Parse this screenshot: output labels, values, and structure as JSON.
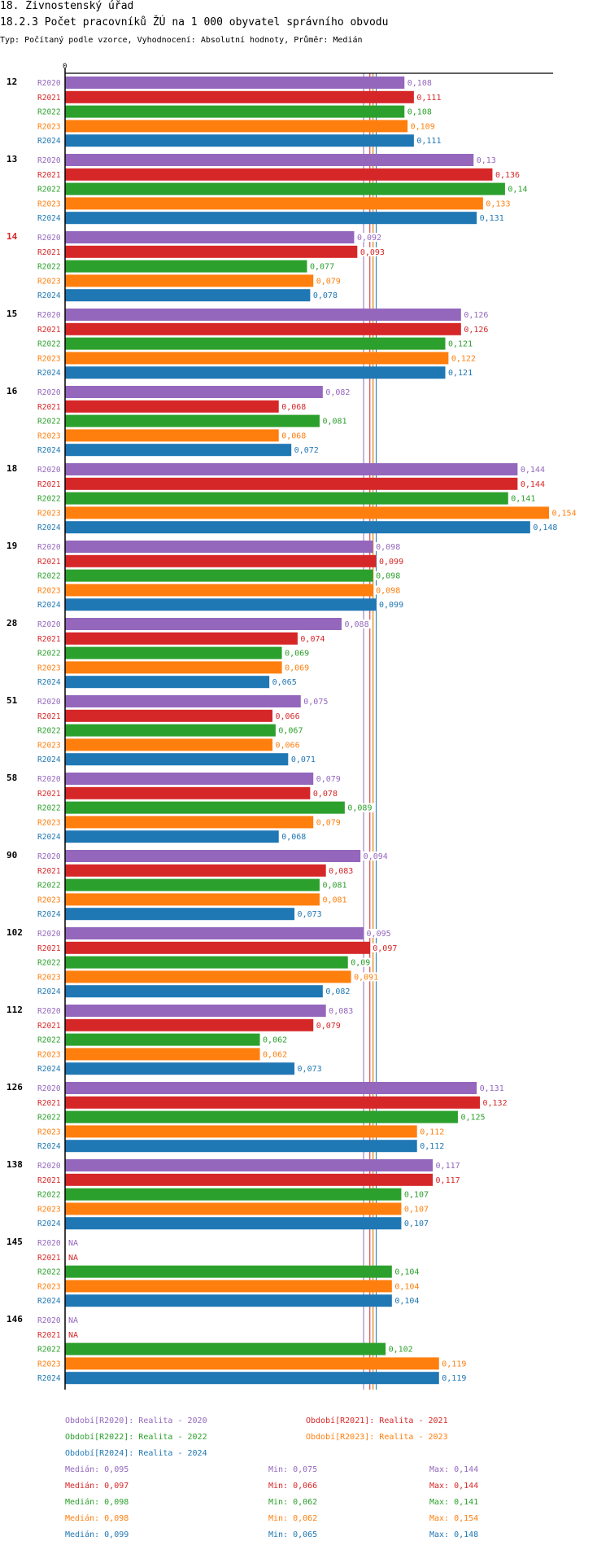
{
  "title": "18. Živnostenský úřad",
  "subtitle": "18.2.3 Počet pracovníků ŽÚ na 1 000 obyvatel správního obvodu",
  "type_line": "Typ: Počítaný podle vzorce, Vyhodnocení: Absolutní hodnoty, Průměr: Medián",
  "colors": {
    "R2020": "#9467bd",
    "R2021": "#d62728",
    "R2022": "#2ca02c",
    "R2023": "#ff7f0e",
    "R2024": "#1f77b4",
    "highlight": "#d62728"
  },
  "chart_data": {
    "type": "bar",
    "orientation": "horizontal",
    "x_axis_label": "0",
    "xlim": [
      0,
      0.154
    ],
    "series_names": [
      "R2020",
      "R2021",
      "R2022",
      "R2023",
      "R2024"
    ],
    "na_label": "NA",
    "highlighted_group": "14",
    "groups": [
      {
        "label": "12",
        "values": [
          "0,108",
          "0,111",
          "0,108",
          "0,109",
          "0,111"
        ]
      },
      {
        "label": "13",
        "values": [
          "0,13",
          "0,136",
          "0,14",
          "0,133",
          "0,131"
        ]
      },
      {
        "label": "14",
        "values": [
          "0,092",
          "0,093",
          "0,077",
          "0,079",
          "0,078"
        ]
      },
      {
        "label": "15",
        "values": [
          "0,126",
          "0,126",
          "0,121",
          "0,122",
          "0,121"
        ]
      },
      {
        "label": "16",
        "values": [
          "0,082",
          "0,068",
          "0,081",
          "0,068",
          "0,072"
        ]
      },
      {
        "label": "18",
        "values": [
          "0,144",
          "0,144",
          "0,141",
          "0,154",
          "0,148"
        ]
      },
      {
        "label": "19",
        "values": [
          "0,098",
          "0,099",
          "0,098",
          "0,098",
          "0,099"
        ]
      },
      {
        "label": "28",
        "values": [
          "0,088",
          "0,074",
          "0,069",
          "0,069",
          "0,065"
        ]
      },
      {
        "label": "51",
        "values": [
          "0,075",
          "0,066",
          "0,067",
          "0,066",
          "0,071"
        ]
      },
      {
        "label": "58",
        "values": [
          "0,079",
          "0,078",
          "0,089",
          "0,079",
          "0,068"
        ]
      },
      {
        "label": "90",
        "values": [
          "0,094",
          "0,083",
          "0,081",
          "0,081",
          "0,073"
        ]
      },
      {
        "label": "102",
        "values": [
          "0,095",
          "0,097",
          "0,09",
          "0,091",
          "0,082"
        ]
      },
      {
        "label": "112",
        "values": [
          "0,083",
          "0,079",
          "0,062",
          "0,062",
          "0,073"
        ]
      },
      {
        "label": "126",
        "values": [
          "0,131",
          "0,132",
          "0,125",
          "0,112",
          "0,112"
        ]
      },
      {
        "label": "138",
        "values": [
          "0,117",
          "0,117",
          "0,107",
          "0,107",
          "0,107"
        ]
      },
      {
        "label": "145",
        "values": [
          null,
          null,
          "0,104",
          "0,104",
          "0,104"
        ]
      },
      {
        "label": "146",
        "values": [
          null,
          null,
          "0,102",
          "0,119",
          "0,119"
        ]
      }
    ],
    "median_lines": [
      {
        "series": "R2020",
        "value": 0.095
      },
      {
        "series": "R2021",
        "value": 0.097
      },
      {
        "series": "R2022",
        "value": 0.098
      },
      {
        "series": "R2023",
        "value": 0.098
      },
      {
        "series": "R2024",
        "value": 0.099
      }
    ]
  },
  "legend": {
    "periods": [
      {
        "series": "R2020",
        "text": "Období[R2020]: Realita - 2020"
      },
      {
        "series": "R2021",
        "text": "Období[R2021]: Realita - 2021"
      },
      {
        "series": "R2022",
        "text": "Období[R2022]: Realita - 2022"
      },
      {
        "series": "R2023",
        "text": "Období[R2023]: Realita - 2023"
      },
      {
        "series": "R2024",
        "text": "Období[R2024]: Realita - 2024"
      }
    ],
    "stats": [
      {
        "series": "R2020",
        "median": "Medián: 0,095",
        "min": "Min: 0,075",
        "max": "Max: 0,144"
      },
      {
        "series": "R2021",
        "median": "Medián: 0,097",
        "min": "Min: 0,066",
        "max": "Max: 0,144"
      },
      {
        "series": "R2022",
        "median": "Medián: 0,098",
        "min": "Min: 0,062",
        "max": "Max: 0,141"
      },
      {
        "series": "R2023",
        "median": "Medián: 0,098",
        "min": "Min: 0,062",
        "max": "Max: 0,154"
      },
      {
        "series": "R2024",
        "median": "Medián: 0,099",
        "min": "Min: 0,065",
        "max": "Max: 0,148"
      }
    ]
  }
}
